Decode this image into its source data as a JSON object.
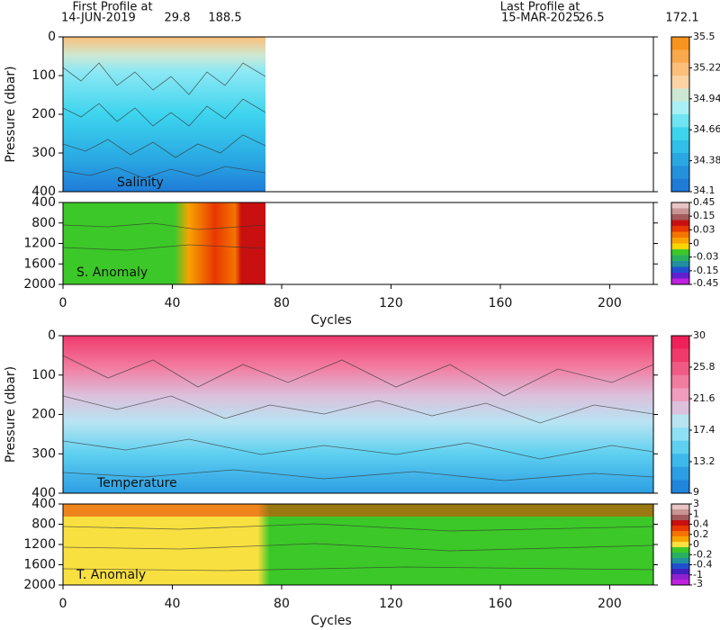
{
  "header": {
    "first_title": "First Profile at",
    "first_date": "14-JUN-2019",
    "first_lat": 29.8,
    "first_lon": 188.5,
    "last_title": "Last Profile at",
    "last_date": "15-MAR-2025",
    "last_lat": 26.5,
    "last_lon": 172.1
  },
  "chart_data": [
    {
      "type": "heatmap",
      "label": "Salinity",
      "ylabel": "Pressure (dbar)",
      "y_inverted": true,
      "xlim": [
        0,
        216
      ],
      "ylim": [
        0,
        400
      ],
      "yticks": [
        0,
        100,
        200,
        300,
        400
      ],
      "colorbar": {
        "ticks": [
          34.1,
          34.38,
          34.66,
          34.94,
          35.22,
          35.5
        ],
        "colors": [
          "#f7941d",
          "#f9a94b",
          "#fbbf7a",
          "#fcd3a5",
          "#cde8d2",
          "#a8f0f5",
          "#6fe4f2",
          "#3dd4ee",
          "#2fbfe8",
          "#29a7e2",
          "#2590dc",
          "#1f7bd8"
        ]
      }
    },
    {
      "type": "heatmap",
      "label": "S. Anomaly",
      "xlabel": "Cycles",
      "y_inverted": true,
      "xlim": [
        0,
        216
      ],
      "ylim": [
        400,
        2000
      ],
      "yticks": [
        400,
        800,
        1200,
        1600,
        2000
      ],
      "xticks": [
        0,
        40,
        80,
        120,
        160,
        200
      ],
      "colorbar": {
        "ticks": [
          -0.45,
          -0.15,
          -0.03,
          0,
          0.03,
          0.15,
          0.45
        ],
        "colors": [
          "#e8c4c4",
          "#c89494",
          "#a35a5a",
          "#c81010",
          "#e83800",
          "#f57400",
          "#f8a400",
          "#f8d400",
          "#3cc828",
          "#28b060",
          "#2090a0",
          "#2050d0",
          "#6020d0",
          "#c020e0"
        ]
      }
    },
    {
      "type": "heatmap",
      "label": "Temperature",
      "ylabel": "Pressure (dbar)",
      "y_inverted": true,
      "xlim": [
        0,
        216
      ],
      "ylim": [
        0,
        400
      ],
      "yticks": [
        0,
        100,
        200,
        300,
        400
      ],
      "colorbar": {
        "ticks": [
          9,
          13.2,
          17.4,
          21.6,
          25.8,
          30
        ],
        "colors": [
          "#f0205a",
          "#f03a6c",
          "#f05a84",
          "#f27ca0",
          "#f09cbc",
          "#dcc0dc",
          "#b8e4f2",
          "#8ee0f6",
          "#5ed0f0",
          "#3cb8ec",
          "#2c9ee4",
          "#1f86dc"
        ]
      }
    },
    {
      "type": "heatmap",
      "label": "T. Anomaly",
      "xlabel": "Cycles",
      "y_inverted": true,
      "xlim": [
        0,
        216
      ],
      "ylim": [
        400,
        2000
      ],
      "yticks": [
        400,
        800,
        1200,
        1600,
        2000
      ],
      "xticks": [
        0,
        40,
        80,
        120,
        160,
        200
      ],
      "colorbar": {
        "ticks": [
          -3,
          -1,
          -0.4,
          -0.2,
          0,
          0.2,
          0.4,
          1,
          3
        ],
        "colors": [
          "#e8c4c4",
          "#c89494",
          "#a35a5a",
          "#c81010",
          "#e83800",
          "#f57400",
          "#f8a400",
          "#f8e040",
          "#3cc828",
          "#28b060",
          "#2090a0",
          "#2050d0",
          "#4020c0",
          "#9020d0",
          "#c020e0"
        ]
      }
    }
  ]
}
